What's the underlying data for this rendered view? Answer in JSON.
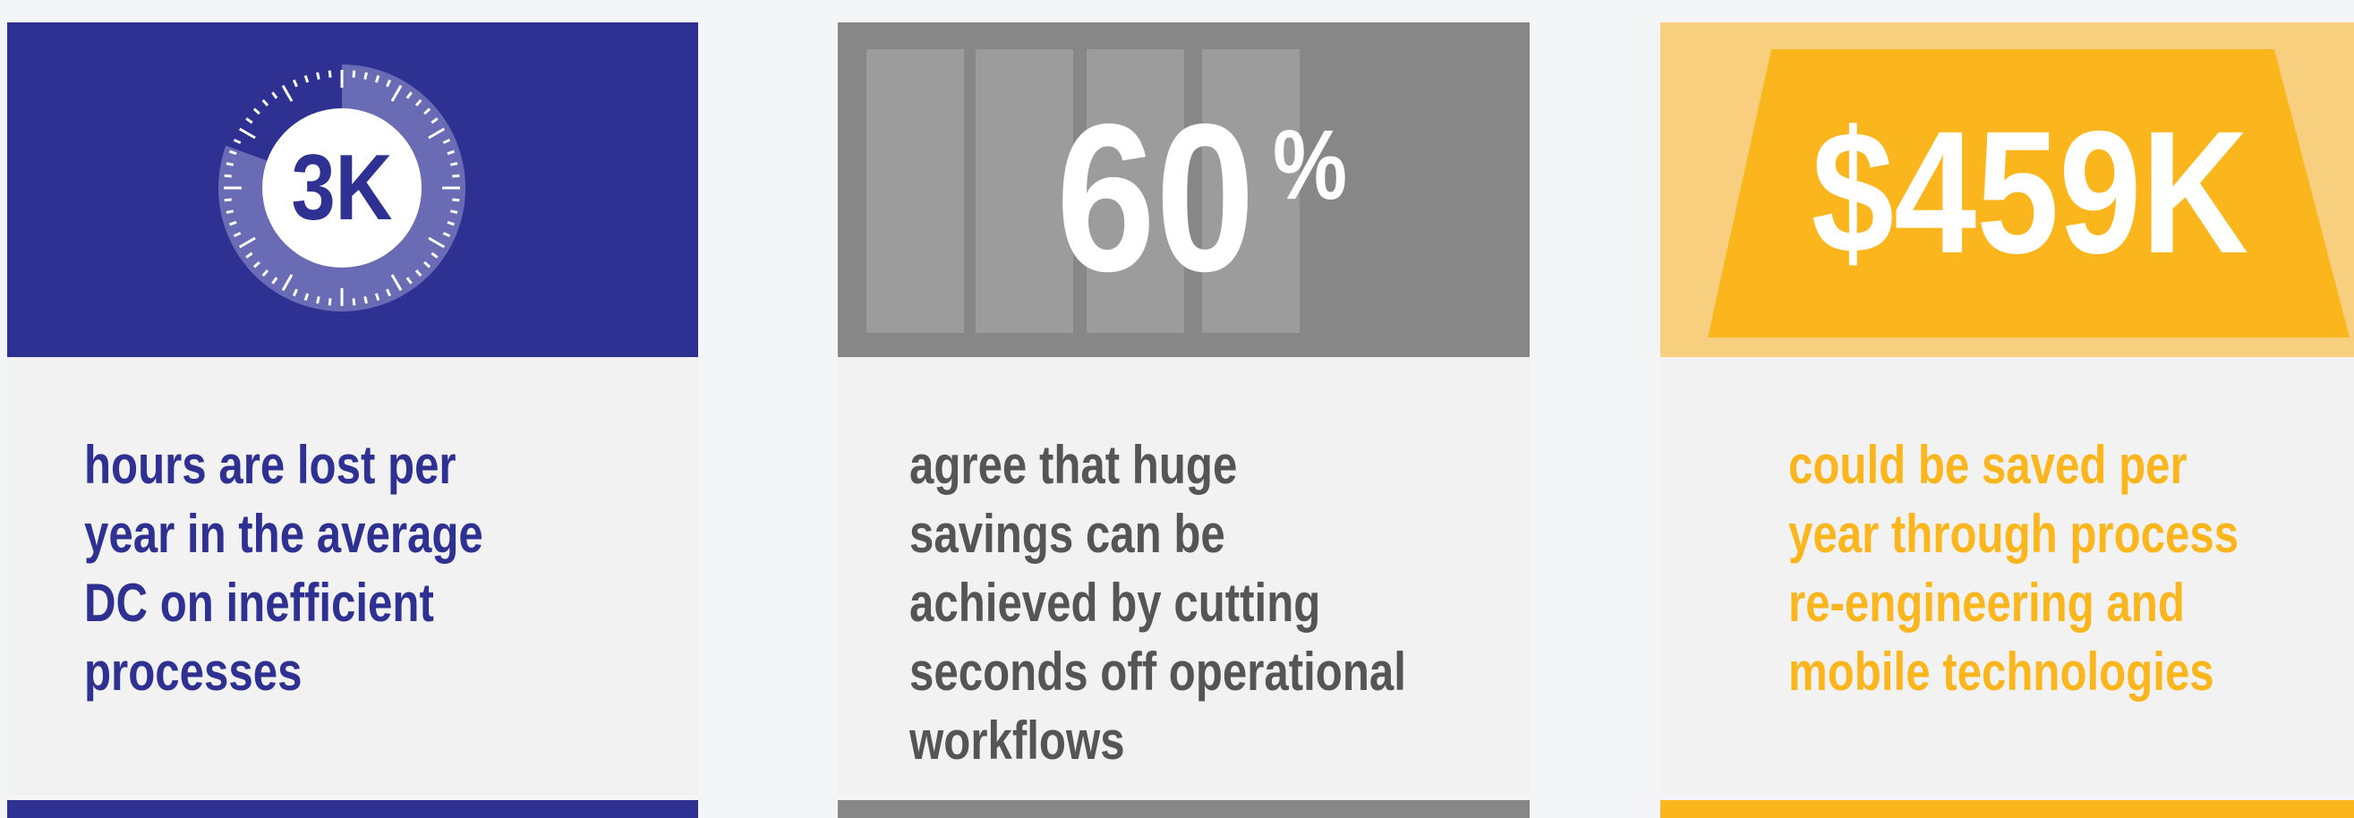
{
  "cards": [
    {
      "stat": "3K",
      "description": [
        "hours are lost per",
        "year in the average",
        "DC on inefficient",
        "processes"
      ]
    },
    {
      "stat": "60",
      "stat_suffix": "%",
      "description": [
        "agree that huge",
        "savings can be",
        "achieved by cutting",
        "seconds off operational",
        "workflows"
      ]
    },
    {
      "stat": "$459K",
      "description": [
        "could be saved per",
        "year through process",
        "re-engineering and",
        "mobile technologies"
      ]
    }
  ]
}
